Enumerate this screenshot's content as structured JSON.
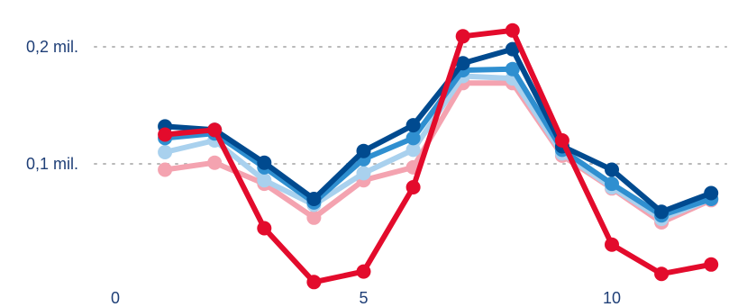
{
  "chart_data": {
    "type": "line",
    "title": "",
    "xlabel": "",
    "ylabel": "",
    "xlim": [
      0,
      12.5
    ],
    "ylim": [
      0,
      0.22
    ],
    "x_ticks": [
      {
        "value": 0,
        "label": "0"
      },
      {
        "value": 5,
        "label": "5"
      },
      {
        "value": 10,
        "label": "10"
      }
    ],
    "y_ticks": [
      {
        "value": 0.1,
        "label": "0,1 mil."
      },
      {
        "value": 0.2,
        "label": "0,2 mil."
      }
    ],
    "grid": "horizontal dotted",
    "legend": "none",
    "x": [
      1,
      2,
      3,
      4,
      5,
      6,
      7,
      8,
      9,
      10,
      11,
      12
    ],
    "series": [
      {
        "color": "#f4a3b0",
        "values": [
          0.095,
          0.101,
          0.083,
          0.054,
          0.086,
          0.097,
          0.169,
          0.169,
          0.107,
          0.079,
          0.05,
          0.069
        ]
      },
      {
        "color": "#a9d1ee",
        "values": [
          0.11,
          0.12,
          0.086,
          0.065,
          0.092,
          0.112,
          0.175,
          0.173,
          0.109,
          0.08,
          0.053,
          0.07
        ]
      },
      {
        "color": "#2f8fd0",
        "values": [
          0.122,
          0.126,
          0.097,
          0.067,
          0.104,
          0.122,
          0.18,
          0.181,
          0.112,
          0.083,
          0.056,
          0.07
        ]
      },
      {
        "color": "#004a8f",
        "values": [
          0.132,
          0.129,
          0.101,
          0.07,
          0.111,
          0.133,
          0.186,
          0.198,
          0.115,
          0.095,
          0.059,
          0.075
        ]
      },
      {
        "color": "#e30b2c",
        "values": [
          0.125,
          0.129,
          0.045,
          -0.001,
          0.008,
          0.08,
          0.209,
          0.214,
          0.12,
          0.031,
          0.006,
          0.014
        ]
      }
    ]
  }
}
